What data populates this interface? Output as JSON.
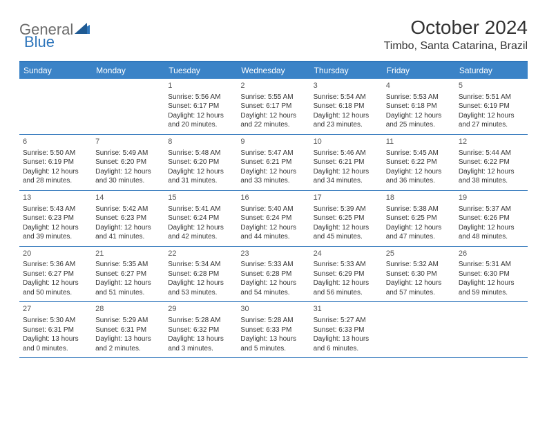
{
  "brand": {
    "general": "General",
    "blue": "Blue",
    "accent": "#2f76bb"
  },
  "title": "October 2024",
  "location": "Timbo, Santa Catarina, Brazil",
  "dayHeaders": [
    "Sunday",
    "Monday",
    "Tuesday",
    "Wednesday",
    "Thursday",
    "Friday",
    "Saturday"
  ],
  "colors": {
    "header_bg": "#3b83c7",
    "rule": "#2f76bb",
    "day_text": "#333333",
    "day_num": "#555555"
  },
  "weeks": [
    [
      {
        "n": "",
        "sr": "",
        "ss": "",
        "dl": ""
      },
      {
        "n": "",
        "sr": "",
        "ss": "",
        "dl": ""
      },
      {
        "n": "1",
        "sr": "Sunrise: 5:56 AM",
        "ss": "Sunset: 6:17 PM",
        "dl": "Daylight: 12 hours and 20 minutes."
      },
      {
        "n": "2",
        "sr": "Sunrise: 5:55 AM",
        "ss": "Sunset: 6:17 PM",
        "dl": "Daylight: 12 hours and 22 minutes."
      },
      {
        "n": "3",
        "sr": "Sunrise: 5:54 AM",
        "ss": "Sunset: 6:18 PM",
        "dl": "Daylight: 12 hours and 23 minutes."
      },
      {
        "n": "4",
        "sr": "Sunrise: 5:53 AM",
        "ss": "Sunset: 6:18 PM",
        "dl": "Daylight: 12 hours and 25 minutes."
      },
      {
        "n": "5",
        "sr": "Sunrise: 5:51 AM",
        "ss": "Sunset: 6:19 PM",
        "dl": "Daylight: 12 hours and 27 minutes."
      }
    ],
    [
      {
        "n": "6",
        "sr": "Sunrise: 5:50 AM",
        "ss": "Sunset: 6:19 PM",
        "dl": "Daylight: 12 hours and 28 minutes."
      },
      {
        "n": "7",
        "sr": "Sunrise: 5:49 AM",
        "ss": "Sunset: 6:20 PM",
        "dl": "Daylight: 12 hours and 30 minutes."
      },
      {
        "n": "8",
        "sr": "Sunrise: 5:48 AM",
        "ss": "Sunset: 6:20 PM",
        "dl": "Daylight: 12 hours and 31 minutes."
      },
      {
        "n": "9",
        "sr": "Sunrise: 5:47 AM",
        "ss": "Sunset: 6:21 PM",
        "dl": "Daylight: 12 hours and 33 minutes."
      },
      {
        "n": "10",
        "sr": "Sunrise: 5:46 AM",
        "ss": "Sunset: 6:21 PM",
        "dl": "Daylight: 12 hours and 34 minutes."
      },
      {
        "n": "11",
        "sr": "Sunrise: 5:45 AM",
        "ss": "Sunset: 6:22 PM",
        "dl": "Daylight: 12 hours and 36 minutes."
      },
      {
        "n": "12",
        "sr": "Sunrise: 5:44 AM",
        "ss": "Sunset: 6:22 PM",
        "dl": "Daylight: 12 hours and 38 minutes."
      }
    ],
    [
      {
        "n": "13",
        "sr": "Sunrise: 5:43 AM",
        "ss": "Sunset: 6:23 PM",
        "dl": "Daylight: 12 hours and 39 minutes."
      },
      {
        "n": "14",
        "sr": "Sunrise: 5:42 AM",
        "ss": "Sunset: 6:23 PM",
        "dl": "Daylight: 12 hours and 41 minutes."
      },
      {
        "n": "15",
        "sr": "Sunrise: 5:41 AM",
        "ss": "Sunset: 6:24 PM",
        "dl": "Daylight: 12 hours and 42 minutes."
      },
      {
        "n": "16",
        "sr": "Sunrise: 5:40 AM",
        "ss": "Sunset: 6:24 PM",
        "dl": "Daylight: 12 hours and 44 minutes."
      },
      {
        "n": "17",
        "sr": "Sunrise: 5:39 AM",
        "ss": "Sunset: 6:25 PM",
        "dl": "Daylight: 12 hours and 45 minutes."
      },
      {
        "n": "18",
        "sr": "Sunrise: 5:38 AM",
        "ss": "Sunset: 6:25 PM",
        "dl": "Daylight: 12 hours and 47 minutes."
      },
      {
        "n": "19",
        "sr": "Sunrise: 5:37 AM",
        "ss": "Sunset: 6:26 PM",
        "dl": "Daylight: 12 hours and 48 minutes."
      }
    ],
    [
      {
        "n": "20",
        "sr": "Sunrise: 5:36 AM",
        "ss": "Sunset: 6:27 PM",
        "dl": "Daylight: 12 hours and 50 minutes."
      },
      {
        "n": "21",
        "sr": "Sunrise: 5:35 AM",
        "ss": "Sunset: 6:27 PM",
        "dl": "Daylight: 12 hours and 51 minutes."
      },
      {
        "n": "22",
        "sr": "Sunrise: 5:34 AM",
        "ss": "Sunset: 6:28 PM",
        "dl": "Daylight: 12 hours and 53 minutes."
      },
      {
        "n": "23",
        "sr": "Sunrise: 5:33 AM",
        "ss": "Sunset: 6:28 PM",
        "dl": "Daylight: 12 hours and 54 minutes."
      },
      {
        "n": "24",
        "sr": "Sunrise: 5:33 AM",
        "ss": "Sunset: 6:29 PM",
        "dl": "Daylight: 12 hours and 56 minutes."
      },
      {
        "n": "25",
        "sr": "Sunrise: 5:32 AM",
        "ss": "Sunset: 6:30 PM",
        "dl": "Daylight: 12 hours and 57 minutes."
      },
      {
        "n": "26",
        "sr": "Sunrise: 5:31 AM",
        "ss": "Sunset: 6:30 PM",
        "dl": "Daylight: 12 hours and 59 minutes."
      }
    ],
    [
      {
        "n": "27",
        "sr": "Sunrise: 5:30 AM",
        "ss": "Sunset: 6:31 PM",
        "dl": "Daylight: 13 hours and 0 minutes."
      },
      {
        "n": "28",
        "sr": "Sunrise: 5:29 AM",
        "ss": "Sunset: 6:31 PM",
        "dl": "Daylight: 13 hours and 2 minutes."
      },
      {
        "n": "29",
        "sr": "Sunrise: 5:28 AM",
        "ss": "Sunset: 6:32 PM",
        "dl": "Daylight: 13 hours and 3 minutes."
      },
      {
        "n": "30",
        "sr": "Sunrise: 5:28 AM",
        "ss": "Sunset: 6:33 PM",
        "dl": "Daylight: 13 hours and 5 minutes."
      },
      {
        "n": "31",
        "sr": "Sunrise: 5:27 AM",
        "ss": "Sunset: 6:33 PM",
        "dl": "Daylight: 13 hours and 6 minutes."
      },
      {
        "n": "",
        "sr": "",
        "ss": "",
        "dl": ""
      },
      {
        "n": "",
        "sr": "",
        "ss": "",
        "dl": ""
      }
    ]
  ]
}
